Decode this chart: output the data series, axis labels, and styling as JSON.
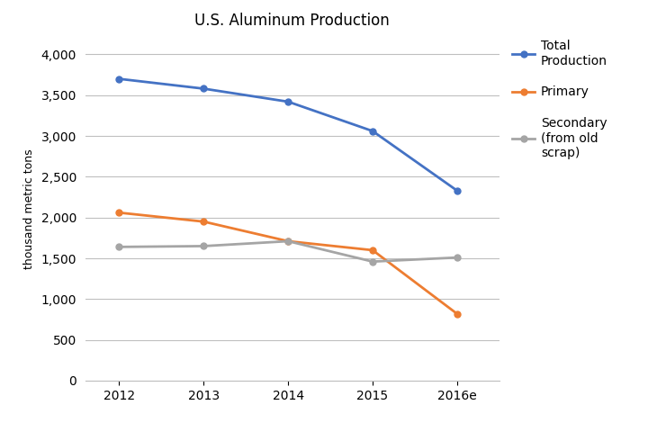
{
  "title": "U.S. Aluminum Production",
  "ylabel": "thousand metric tons",
  "years": [
    "2012",
    "2013",
    "2014",
    "2015",
    "2016e"
  ],
  "total_production": [
    3700,
    3580,
    3420,
    3060,
    2330
  ],
  "primary": [
    2060,
    1950,
    1710,
    1600,
    820
  ],
  "secondary": [
    1640,
    1650,
    1710,
    1460,
    1510
  ],
  "total_color": "#4472C4",
  "primary_color": "#ED7D31",
  "secondary_color": "#A5A5A5",
  "legend_labels": [
    "Total\nProduction",
    "Primary",
    "Secondary\n(from old\nscrap)"
  ],
  "ylim": [
    0,
    4200
  ],
  "yticks": [
    0,
    500,
    1000,
    1500,
    2000,
    2500,
    3000,
    3500,
    4000
  ],
  "background_color": "#FFFFFF",
  "grid_color": "#BFBFBF",
  "title_fontsize": 12,
  "axis_label_fontsize": 9,
  "tick_fontsize": 10,
  "legend_fontsize": 10,
  "linewidth": 2.0,
  "marker": "o",
  "marker_size": 5
}
